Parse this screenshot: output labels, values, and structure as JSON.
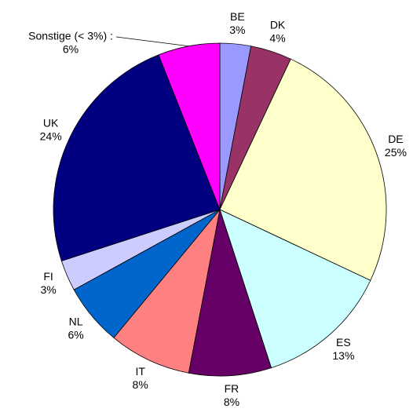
{
  "chart_data": {
    "type": "pie",
    "categories": [
      "BE",
      "DK",
      "DE",
      "ES",
      "FR",
      "IT",
      "NL",
      "FI",
      "UK",
      "Sonstige (< 3%) :"
    ],
    "values": [
      3,
      4,
      25,
      13,
      8,
      8,
      6,
      3,
      24,
      6
    ],
    "value_labels": [
      "3%",
      "4%",
      "25%",
      "13%",
      "8%",
      "8%",
      "6%",
      "3%",
      "24%",
      "6%"
    ],
    "colors": [
      "#9999ff",
      "#993366",
      "#ffffcc",
      "#ccffff",
      "#660066",
      "#ff8080",
      "#0066cc",
      "#ccccff",
      "#000080",
      "#ff00ff"
    ]
  }
}
